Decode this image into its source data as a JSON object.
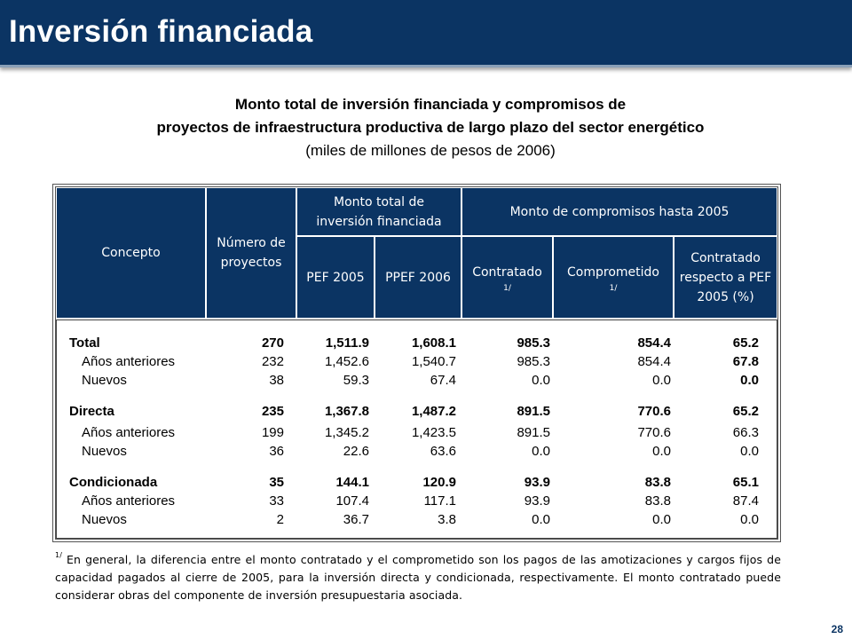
{
  "slide_title": "Inversión financiada",
  "subtitle": {
    "line1": "Monto total de inversión financiada y compromisos de",
    "line2": "proyectos de infraestructura productiva de largo plazo del sector energético",
    "line3": "(miles de millones de pesos de 2006)"
  },
  "table": {
    "headers": {
      "concepto": "Concepto",
      "numero": "Número de proyectos",
      "monto_total": "Monto total de inversión financiada",
      "monto_compromisos": "Monto de compromisos hasta 2005",
      "pef2005": "PEF 2005",
      "ppef2006": "PPEF 2006",
      "contratado": "Contratado",
      "contratado_note": "1/",
      "comprometido": "Comprometido",
      "comprometido_note": "1/",
      "contratado_pct": "Contratado respecto a PEF 2005 (%)"
    },
    "rows": [
      {
        "concepto": "Total",
        "n": "270",
        "pef": "1,511.9",
        "ppef": "1,608.1",
        "contratado": "985.3",
        "comprometido": "854.4",
        "pct": "65.2"
      },
      {
        "concepto": "Años anteriores",
        "n": "232",
        "pef": "1,452.6",
        "ppef": "1,540.7",
        "contratado": "985.3",
        "comprometido": "854.4",
        "pct": "67.8"
      },
      {
        "concepto": "Nuevos",
        "n": "38",
        "pef": "59.3",
        "ppef": "67.4",
        "contratado": "0.0",
        "comprometido": "0.0",
        "pct": "0.0"
      },
      {
        "concepto": "Directa",
        "n": "235",
        "pef": "1,367.8",
        "ppef": "1,487.2",
        "contratado": "891.5",
        "comprometido": "770.6",
        "pct": "65.2"
      },
      {
        "concepto": "Años anteriores",
        "n": "199",
        "pef": "1,345.2",
        "ppef": "1,423.5",
        "contratado": "891.5",
        "comprometido": "770.6",
        "pct": "66.3"
      },
      {
        "concepto": "Nuevos",
        "n": "36",
        "pef": "22.6",
        "ppef": "63.6",
        "contratado": "0.0",
        "comprometido": "0.0",
        "pct": "0.0"
      },
      {
        "concepto": "Condicionada",
        "n": "35",
        "pef": "144.1",
        "ppef": "120.9",
        "contratado": "93.9",
        "comprometido": "83.8",
        "pct": "65.1"
      },
      {
        "concepto": "Años anteriores",
        "n": "33",
        "pef": "107.4",
        "ppef": "117.1",
        "contratado": "93.9",
        "comprometido": "83.8",
        "pct": "87.4"
      },
      {
        "concepto": "Nuevos",
        "n": "2",
        "pef": "36.7",
        "ppef": "3.8",
        "contratado": "0.0",
        "comprometido": "0.0",
        "pct": "0.0"
      }
    ]
  },
  "footnote": {
    "marker": "1/",
    "text": " En general, la diferencia entre el monto contratado y el comprometido son los pagos de las amotizaciones y cargos fijos de capacidad pagados al cierre de 2005, para la inversión directa y condicionada, respectivamente. El monto contratado puede considerar obras del componente de inversión presupuestaria asociada."
  },
  "page_number": "28",
  "colors": {
    "header_blue": "#0b3463"
  }
}
